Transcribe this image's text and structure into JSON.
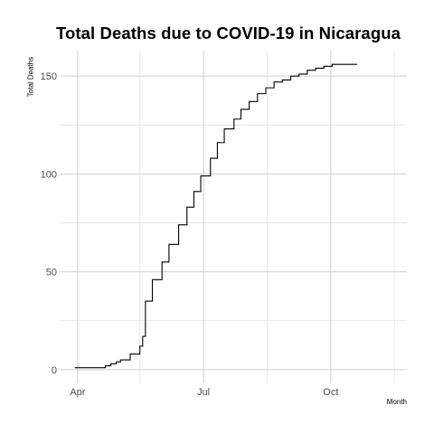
{
  "chart_data": {
    "type": "line",
    "line_style": "step",
    "title": "Total Deaths due to COVID-19 in Nicaragua",
    "xlabel": "Month",
    "ylabel": "Total Deaths",
    "x_unit": "day of year 2020",
    "xlim": [
      79,
      330
    ],
    "ylim": [
      -7,
      163
    ],
    "x_ticks": [
      {
        "label": "Apr",
        "value": 92
      },
      {
        "label": "Jul",
        "value": 183
      },
      {
        "label": "Oct",
        "value": 275
      }
    ],
    "x_minor_ticks": [
      137,
      229,
      321
    ],
    "y_ticks": [
      0,
      50,
      100,
      150
    ],
    "y_minor_ticks": [
      25,
      75,
      125
    ],
    "grid": true,
    "line_color": "#000000",
    "series": [
      {
        "name": "Total Deaths",
        "points": [
          [
            90,
            1
          ],
          [
            112,
            1
          ],
          [
            112,
            2
          ],
          [
            116,
            2
          ],
          [
            116,
            3
          ],
          [
            120,
            3
          ],
          [
            120,
            4
          ],
          [
            123,
            4
          ],
          [
            123,
            5
          ],
          [
            130,
            5
          ],
          [
            130,
            8
          ],
          [
            137,
            8
          ],
          [
            137,
            12
          ],
          [
            139,
            12
          ],
          [
            139,
            17
          ],
          [
            141,
            17
          ],
          [
            141,
            35
          ],
          [
            146,
            35
          ],
          [
            146,
            46
          ],
          [
            153,
            46
          ],
          [
            153,
            55
          ],
          [
            158,
            55
          ],
          [
            158,
            64
          ],
          [
            165,
            64
          ],
          [
            165,
            74
          ],
          [
            171,
            74
          ],
          [
            171,
            83
          ],
          [
            176,
            83
          ],
          [
            176,
            91
          ],
          [
            181,
            91
          ],
          [
            181,
            99
          ],
          [
            188,
            99
          ],
          [
            188,
            108
          ],
          [
            193,
            108
          ],
          [
            193,
            116
          ],
          [
            198,
            116
          ],
          [
            198,
            123
          ],
          [
            205,
            123
          ],
          [
            205,
            128
          ],
          [
            210,
            128
          ],
          [
            210,
            133
          ],
          [
            216,
            133
          ],
          [
            216,
            137
          ],
          [
            222,
            137
          ],
          [
            222,
            141
          ],
          [
            228,
            141
          ],
          [
            228,
            144
          ],
          [
            234,
            144
          ],
          [
            234,
            147
          ],
          [
            240,
            147
          ],
          [
            240,
            148
          ],
          [
            246,
            148
          ],
          [
            246,
            150
          ],
          [
            252,
            150
          ],
          [
            252,
            151
          ],
          [
            258,
            151
          ],
          [
            258,
            153
          ],
          [
            264,
            153
          ],
          [
            264,
            154
          ],
          [
            270,
            154
          ],
          [
            270,
            155
          ],
          [
            276,
            155
          ],
          [
            276,
            156
          ],
          [
            282,
            156
          ],
          [
            282,
            156
          ],
          [
            294,
            156
          ]
        ]
      }
    ]
  }
}
